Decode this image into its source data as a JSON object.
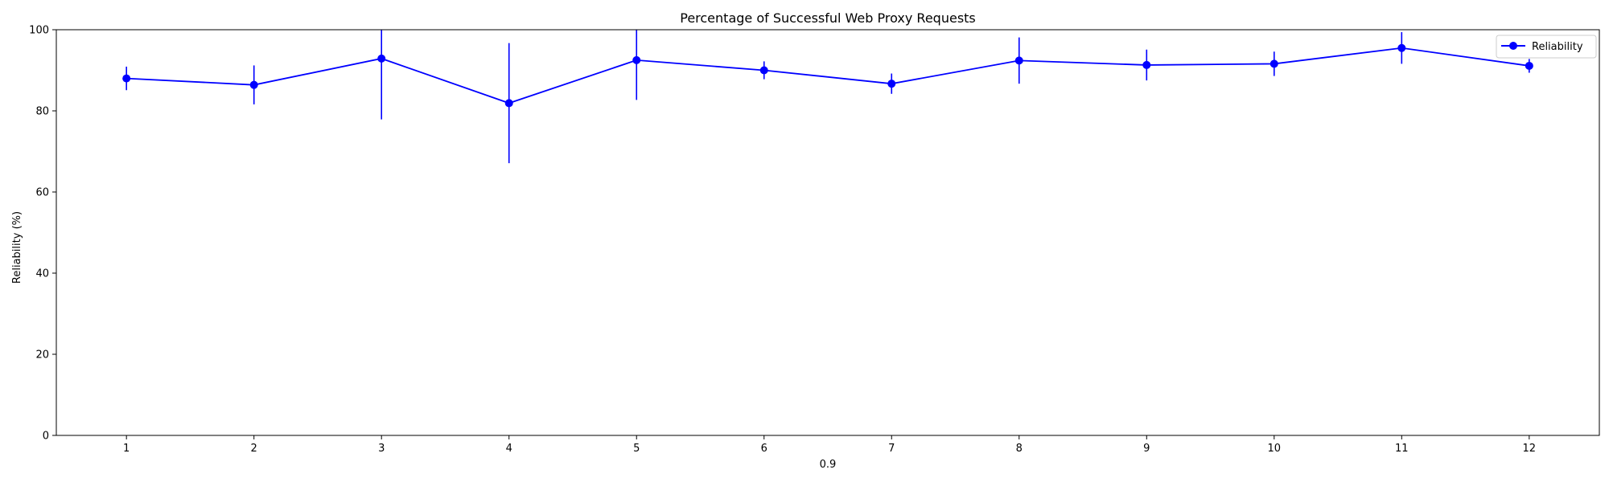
{
  "chart_data": {
    "type": "line",
    "title": "Percentage of Successful Web Proxy Requests",
    "xlabel": "0.9",
    "ylabel": "Reliability (%)",
    "x": [
      1,
      2,
      3,
      4,
      5,
      6,
      7,
      8,
      9,
      10,
      11,
      12
    ],
    "xlim": [
      0.45,
      12.55
    ],
    "ylim": [
      0,
      100
    ],
    "yticks": [
      0,
      20,
      40,
      60,
      80,
      100
    ],
    "grid": false,
    "legend_position": "top-right",
    "series": [
      {
        "name": "Reliability",
        "color": "#0000ff",
        "marker": "circle",
        "values": [
          88.0,
          86.4,
          92.9,
          81.9,
          92.5,
          90.0,
          86.7,
          92.4,
          91.3,
          91.6,
          95.5,
          91.1
        ],
        "error": [
          2.9,
          4.8,
          15.0,
          14.8,
          9.8,
          2.2,
          2.5,
          5.7,
          3.8,
          3.0,
          3.9,
          1.7
        ]
      }
    ]
  }
}
